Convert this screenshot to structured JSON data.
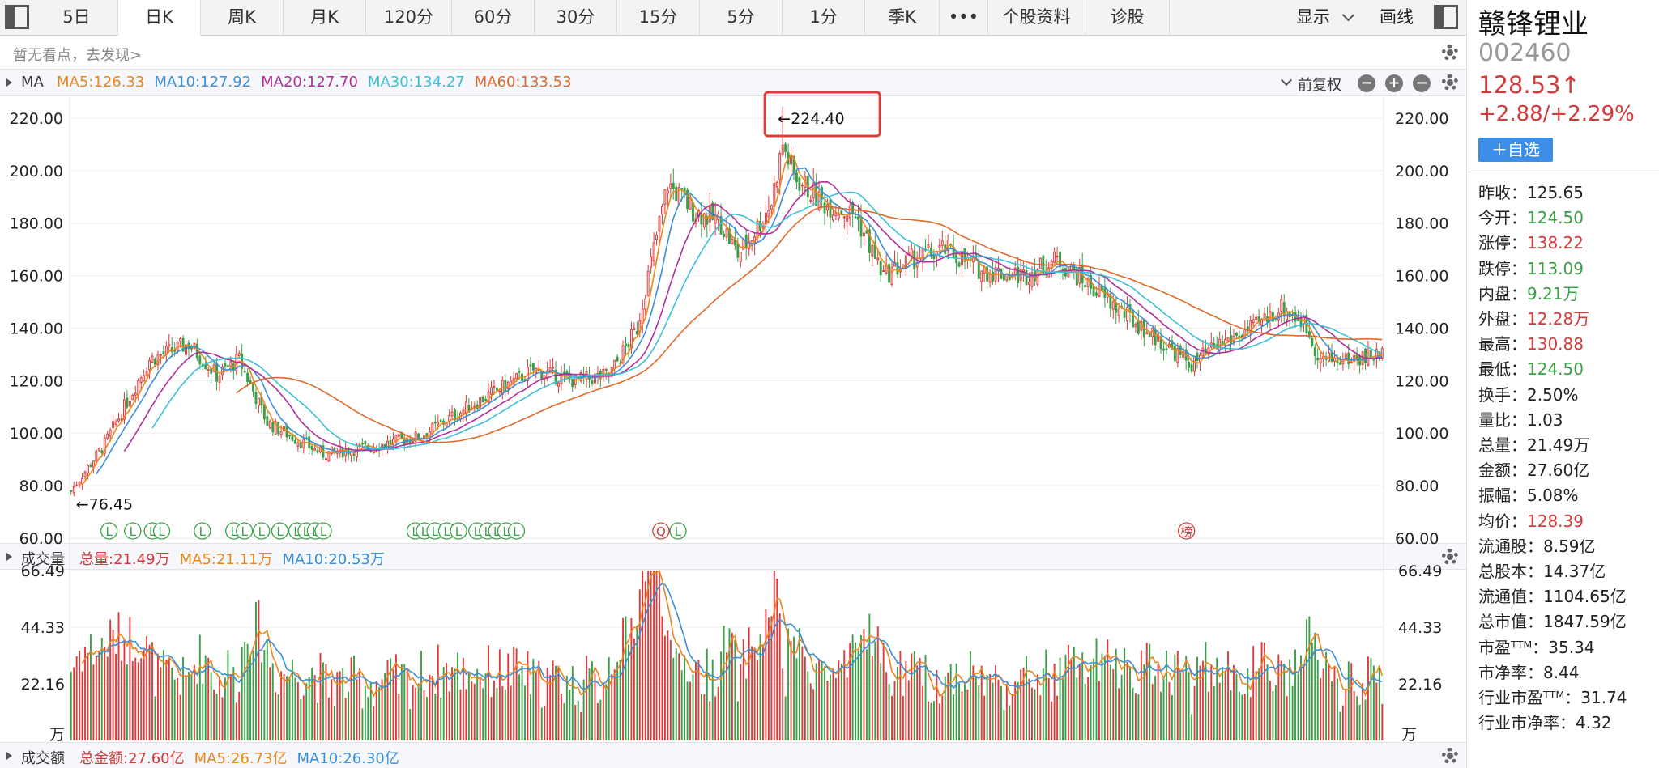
{
  "toolbar": {
    "tabs": [
      "5日",
      "日K",
      "周K",
      "月K",
      "120分",
      "60分",
      "30分",
      "15分",
      "5分",
      "1分",
      "季K"
    ],
    "active_tab": "日K",
    "more": "•••",
    "profile": "个股资料",
    "diagnose": "诊股",
    "display": "显示",
    "draw": "画线"
  },
  "hint": "暂无看点，去发现>",
  "ma_bar": {
    "label": "MA",
    "items": [
      {
        "text": "MA5:126.33",
        "color": "#e8871e"
      },
      {
        "text": "MA10:127.92",
        "color": "#3d8fd8"
      },
      {
        "text": "MA20:127.70",
        "color": "#b0309a"
      },
      {
        "text": "MA30:134.27",
        "color": "#3cc0d8"
      },
      {
        "text": "MA60:133.53",
        "color": "#e06a2b"
      }
    ],
    "adjust": "前复权"
  },
  "vol_bar": {
    "label": "成交量",
    "items": [
      {
        "text": "总量:21.49万",
        "color": "#d33a3a"
      },
      {
        "text": "MA5:21.11万",
        "color": "#e8871e"
      },
      {
        "text": "MA10:20.53万",
        "color": "#3d8fd8"
      }
    ]
  },
  "amt_bar": {
    "label": "成交额",
    "items": [
      {
        "text": "总金额:27.60亿",
        "color": "#d33a3a"
      },
      {
        "text": "MA5:26.73亿",
        "color": "#e8871e"
      },
      {
        "text": "MA10:26.30亿",
        "color": "#3d8fd8"
      }
    ]
  },
  "colors": {
    "up": "#e03a3a",
    "down": "#3aa046",
    "ma5": "#e8871e",
    "ma10": "#3d8fd8",
    "ma20": "#b0309a",
    "ma30": "#3cc0d8",
    "ma60": "#e06a2b",
    "highlight": "#e03a3a"
  },
  "chart_data": {
    "type": "candlestick",
    "price_axis": {
      "ticks": [
        "220.00",
        "200.00",
        "180.00",
        "160.00",
        "140.00",
        "120.00",
        "100.00",
        "80.00",
        "60.00"
      ],
      "ylim": [
        60,
        228
      ]
    },
    "volume_axis": {
      "ticks": [
        "66.49",
        "44.33",
        "22.16"
      ],
      "unit": "万",
      "ylim": [
        0,
        66.49
      ]
    },
    "annotations": {
      "high": "←224.40",
      "high_value": 224.4,
      "low": "←76.45",
      "low_value": 76.45
    },
    "markers": [
      {
        "text": "L",
        "color": "#3aa046",
        "pos": 0.03
      },
      {
        "text": "L",
        "color": "#3aa046",
        "pos": 0.048
      },
      {
        "text": "L",
        "color": "#3aa046",
        "pos": 0.063
      },
      {
        "text": "L",
        "color": "#3aa046",
        "pos": 0.07
      },
      {
        "text": "L",
        "color": "#3aa046",
        "pos": 0.101
      },
      {
        "text": "L",
        "color": "#3aa046",
        "pos": 0.125
      },
      {
        "text": "L",
        "color": "#3aa046",
        "pos": 0.133
      },
      {
        "text": "L",
        "color": "#3aa046",
        "pos": 0.146
      },
      {
        "text": "L",
        "color": "#3aa046",
        "pos": 0.16
      },
      {
        "text": "L",
        "color": "#3aa046",
        "pos": 0.173
      },
      {
        "text": "L",
        "color": "#3aa046",
        "pos": 0.18
      },
      {
        "text": "L",
        "color": "#3aa046",
        "pos": 0.187
      },
      {
        "text": "L",
        "color": "#3aa046",
        "pos": 0.193
      },
      {
        "text": "L",
        "color": "#3aa046",
        "pos": 0.263
      },
      {
        "text": "L",
        "color": "#3aa046",
        "pos": 0.27
      },
      {
        "text": "L",
        "color": "#3aa046",
        "pos": 0.278
      },
      {
        "text": "L",
        "color": "#3aa046",
        "pos": 0.287
      },
      {
        "text": "L",
        "color": "#3aa046",
        "pos": 0.296
      },
      {
        "text": "L",
        "color": "#3aa046",
        "pos": 0.31
      },
      {
        "text": "L",
        "color": "#3aa046",
        "pos": 0.318
      },
      {
        "text": "L",
        "color": "#3aa046",
        "pos": 0.325
      },
      {
        "text": "L",
        "color": "#3aa046",
        "pos": 0.332
      },
      {
        "text": "L",
        "color": "#3aa046",
        "pos": 0.34
      },
      {
        "text": "Q",
        "color": "#d33a3a",
        "pos": 0.45
      },
      {
        "text": "L",
        "color": "#3aa046",
        "pos": 0.463
      },
      {
        "text": "榜",
        "color": "#d33a3a",
        "pos": 0.85
      }
    ],
    "ma_colors": [
      "#e8871e",
      "#3d8fd8",
      "#b0309a",
      "#3cc0d8",
      "#e06a2b"
    ],
    "notes": "Daily candles approximated from the visible trend (peak 224.40, trough 76.45)."
  },
  "right_panel": {
    "name": "赣锋锂业",
    "code": "002460",
    "price": "128.53↑",
    "change": "+2.88/+2.29%",
    "watch_button": "＋自选",
    "stats": [
      {
        "k": "昨收：",
        "v": "125.65",
        "c": "#222"
      },
      {
        "k": "今开：",
        "v": "124.50",
        "c": "#3aa046"
      },
      {
        "k": "涨停：",
        "v": "138.22",
        "c": "#d33a3a"
      },
      {
        "k": "跌停：",
        "v": "113.09",
        "c": "#3aa046"
      },
      {
        "k": "内盘：",
        "v": "9.21万",
        "c": "#3aa046"
      },
      {
        "k": "外盘：",
        "v": "12.28万",
        "c": "#d33a3a"
      },
      {
        "k": "最高：",
        "v": "130.88",
        "c": "#d33a3a"
      },
      {
        "k": "最低：",
        "v": "124.50",
        "c": "#3aa046"
      },
      {
        "k": "换手：",
        "v": "2.50%",
        "c": "#222"
      },
      {
        "k": "量比：",
        "v": "1.03",
        "c": "#222"
      },
      {
        "k": "总量：",
        "v": "21.49万",
        "c": "#222"
      },
      {
        "k": "金额：",
        "v": "27.60亿",
        "c": "#222"
      },
      {
        "k": "振幅：",
        "v": "5.08%",
        "c": "#222"
      },
      {
        "k": "均价：",
        "v": "128.39",
        "c": "#d33a3a"
      },
      {
        "k": "流通股：",
        "v": "8.59亿",
        "c": "#222"
      },
      {
        "k": "总股本：",
        "v": "14.37亿",
        "c": "#222"
      },
      {
        "k": "流通值：",
        "v": "1104.65亿",
        "c": "#222"
      },
      {
        "k": "总市值：",
        "v": "1847.59亿",
        "c": "#222"
      },
      {
        "k": "市盈ᵀᵀᴹ：",
        "v": "35.34",
        "c": "#222"
      },
      {
        "k": "市净率：",
        "v": "8.44",
        "c": "#222"
      },
      {
        "k": "行业市盈ᵀᵀᴹ：",
        "v": "31.74",
        "c": "#222"
      },
      {
        "k": "行业市净率：",
        "v": "4.32",
        "c": "#222"
      }
    ]
  }
}
